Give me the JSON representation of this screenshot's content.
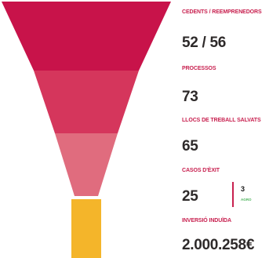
{
  "colors": {
    "label": "#c8204f",
    "value": "#2e2a2a",
    "funnel_1": "#c8134a",
    "funnel_2": "#d5365c",
    "funnel_3": "#e06c7e",
    "funnel_stem": "#f4b52a",
    "sub_value": "#1a1a1a",
    "sub_label": "#4bb35a",
    "divider": "#c8204f"
  },
  "stats": [
    {
      "label": "CEDENTS / REEMPRENEDORS",
      "value": "52 / 56"
    },
    {
      "label": "PROCESSOS",
      "value": "73"
    },
    {
      "label": "LLOCS DE TREBALL SALVATS",
      "value": "65"
    },
    {
      "label": "CASOS D'ÈXIT",
      "value": "25"
    },
    {
      "label": "INVERSIÓ INDUÏDA",
      "value": "2.000.258€"
    }
  ],
  "cases_extra": {
    "value": "3",
    "label": "AGRO"
  }
}
